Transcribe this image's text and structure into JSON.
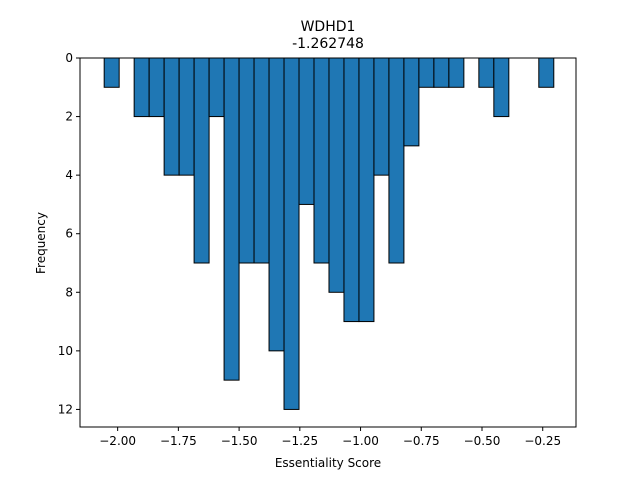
{
  "chart_data": {
    "type": "bar",
    "title": "WDHD1",
    "subtitle": "-1.262748",
    "xlabel": "Essentiality Score",
    "ylabel": "Frequency",
    "y_axis_inverted": true,
    "bar_color": "#1f77b4",
    "edge_color": "#000000",
    "xlim": [
      -2.155,
      -0.113
    ],
    "ylim": [
      0,
      12.6
    ],
    "bin_width": 0.0617,
    "bins": [
      {
        "x": -2.0246,
        "y": 1
      },
      {
        "x": -1.9012,
        "y": 2
      },
      {
        "x": -1.8395,
        "y": 2
      },
      {
        "x": -1.7778,
        "y": 4
      },
      {
        "x": -1.7161,
        "y": 4
      },
      {
        "x": -1.6544,
        "y": 7
      },
      {
        "x": -1.5927,
        "y": 2
      },
      {
        "x": -1.531,
        "y": 11
      },
      {
        "x": -1.4693,
        "y": 7
      },
      {
        "x": -1.4076,
        "y": 7
      },
      {
        "x": -1.3459,
        "y": 10
      },
      {
        "x": -1.2842,
        "y": 12
      },
      {
        "x": -1.2225,
        "y": 5
      },
      {
        "x": -1.1608,
        "y": 7
      },
      {
        "x": -1.0991,
        "y": 8
      },
      {
        "x": -1.0374,
        "y": 9
      },
      {
        "x": -0.9757,
        "y": 9
      },
      {
        "x": -0.914,
        "y": 4
      },
      {
        "x": -0.8523,
        "y": 7
      },
      {
        "x": -0.7906,
        "y": 3
      },
      {
        "x": -0.7289,
        "y": 1
      },
      {
        "x": -0.6672,
        "y": 1
      },
      {
        "x": -0.6055,
        "y": 1
      },
      {
        "x": -0.4821,
        "y": 1
      },
      {
        "x": -0.4204,
        "y": 2
      },
      {
        "x": -0.2353,
        "y": 1
      }
    ],
    "x_ticks": [
      {
        "value": -2.0,
        "label": "−2.00"
      },
      {
        "value": -1.75,
        "label": "−1.75"
      },
      {
        "value": -1.5,
        "label": "−1.50"
      },
      {
        "value": -1.25,
        "label": "−1.25"
      },
      {
        "value": -1.0,
        "label": "−1.00"
      },
      {
        "value": -0.75,
        "label": "−0.75"
      },
      {
        "value": -0.5,
        "label": "−0.50"
      },
      {
        "value": -0.25,
        "label": "−0.25"
      }
    ],
    "y_ticks": [
      {
        "value": 0,
        "label": "0"
      },
      {
        "value": 2,
        "label": "2"
      },
      {
        "value": 4,
        "label": "4"
      },
      {
        "value": 6,
        "label": "6"
      },
      {
        "value": 8,
        "label": "8"
      },
      {
        "value": 10,
        "label": "10"
      },
      {
        "value": 12,
        "label": "12"
      }
    ]
  }
}
